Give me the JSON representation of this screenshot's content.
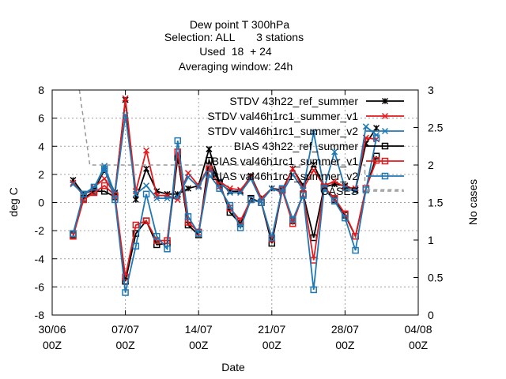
{
  "chart_data": {
    "type": "line",
    "title_lines": [
      "Dew point T 300hPa",
      "Selection: ALL       3 stations",
      "Used  18  + 24",
      "Averaging window: 24h"
    ],
    "xlabel": "Date",
    "ylabel": "deg C",
    "y2label": "No cases",
    "x_ticks": [
      {
        "x": 0,
        "line1": "30/06",
        "line2": "00Z"
      },
      {
        "x": 7,
        "line1": "07/07",
        "line2": "00Z"
      },
      {
        "x": 14,
        "line1": "14/07",
        "line2": "00Z"
      },
      {
        "x": 21,
        "line1": "21/07",
        "line2": "00Z"
      },
      {
        "x": 28,
        "line1": "28/07",
        "line2": "00Z"
      },
      {
        "x": 35,
        "line1": "04/08",
        "line2": "00Z"
      }
    ],
    "xlim": [
      0,
      35
    ],
    "ylim": [
      -8,
      8
    ],
    "y_ticks": [
      -8,
      -6,
      -4,
      -2,
      0,
      2,
      4,
      6,
      8
    ],
    "y2lim": [
      0,
      3
    ],
    "y2_ticks": [
      0,
      0.5,
      1,
      1.5,
      2,
      2.5,
      3
    ],
    "grid": true,
    "legend_position": "top-right",
    "x": [
      2,
      3,
      4,
      5,
      6,
      7,
      8,
      9,
      10,
      11,
      12,
      13,
      14,
      15,
      16,
      17,
      18,
      19,
      20,
      21,
      22,
      23,
      24,
      25,
      26,
      27,
      28,
      29,
      30,
      31
    ],
    "series": [
      {
        "name": "STDV 43h22_ref_summer",
        "color": "#000000",
        "marker": "star",
        "style": "solid",
        "values": [
          1.6,
          0.6,
          0.9,
          2.3,
          0.7,
          7.3,
          0.2,
          2.4,
          0.8,
          0.6,
          0.6,
          1.0,
          1.2,
          3.8,
          1.4,
          0.8,
          0.8,
          1.9,
          0.3,
          1.0,
          0.9,
          2.4,
          1.2,
          2.7,
          1.1,
          1.3,
          1.2,
          0.9,
          4.2,
          5.3
        ]
      },
      {
        "name": "STDV val46h1rc1_summer_v1",
        "color": "#e41a1c",
        "marker": "x",
        "style": "solid",
        "values": [
          1.4,
          0.5,
          1.1,
          1.7,
          0.6,
          7.4,
          0.8,
          3.7,
          0.5,
          0.5,
          0.2,
          2.1,
          1.2,
          2.6,
          1.5,
          1.0,
          0.9,
          1.8,
          0.3,
          1.0,
          0.8,
          2.4,
          1.0,
          2.3,
          1.2,
          1.5,
          1.1,
          1.0,
          4.6,
          4.5
        ]
      },
      {
        "name": "STDV val46h1rc1_summer_v2",
        "color": "#1f78b4",
        "marker": "x",
        "style": "solid",
        "values": [
          1.3,
          0.6,
          1.0,
          2.6,
          0.6,
          6.2,
          0.6,
          1.2,
          0.3,
          0.3,
          0.4,
          1.8,
          1.1,
          2.5,
          1.5,
          0.7,
          0.7,
          1.7,
          0.1,
          1.0,
          0.7,
          2.0,
          0.9,
          5.0,
          1.0,
          3.6,
          1.0,
          0.8,
          5.4,
          4.8
        ]
      },
      {
        "name": "BIAS 43h22_ref_summer",
        "color": "#000000",
        "marker": "square",
        "style": "solid",
        "values": [
          -2.3,
          0.3,
          0.8,
          0.8,
          0.4,
          -5.6,
          -2.2,
          -1.3,
          -3.0,
          -2.9,
          3.2,
          -1.6,
          -2.3,
          3.0,
          1.4,
          -0.7,
          -1.5,
          0.3,
          0.0,
          -2.9,
          0.9,
          -1.3,
          0.6,
          -2.5,
          1.1,
          0.2,
          -0.9,
          -2.4,
          1.0,
          3.3
        ]
      },
      {
        "name": "BIAS val46h1rc1_summer_v1",
        "color": "#e41a1c",
        "marker": "square",
        "style": "solid",
        "values": [
          -2.4,
          0.2,
          0.7,
          1.2,
          0.5,
          -5.3,
          -1.6,
          -1.3,
          -2.7,
          -2.7,
          3.6,
          -1.4,
          -2.1,
          2.4,
          1.2,
          -0.4,
          -1.3,
          0.2,
          0.0,
          -2.6,
          0.9,
          -1.5,
          0.6,
          -4.1,
          1.1,
          0.3,
          -0.8,
          -2.4,
          1.0,
          3.0
        ]
      },
      {
        "name": "BIAS val46h1rc1_summer_v2",
        "color": "#1f78b4",
        "marker": "square",
        "style": "solid",
        "values": [
          -2.2,
          0.6,
          1.1,
          2.4,
          0.2,
          -6.4,
          -3.1,
          0.6,
          -2.4,
          -3.3,
          4.4,
          -1.0,
          -2.2,
          2.0,
          1.0,
          -0.2,
          -1.8,
          0.2,
          0.0,
          -2.5,
          1.0,
          -1.2,
          0.5,
          -6.2,
          1.0,
          0.1,
          -1.1,
          -3.4,
          0.9,
          4.6
        ]
      },
      {
        "name": "CASES",
        "color": "#999999",
        "marker": "none",
        "style": "dashed",
        "axis": "y2",
        "x": [
          2.6,
          3.6,
          3.6,
          29.9,
          29.9,
          33.6
        ],
        "values": [
          3,
          2,
          2,
          2,
          1.67,
          1.67
        ]
      }
    ]
  }
}
